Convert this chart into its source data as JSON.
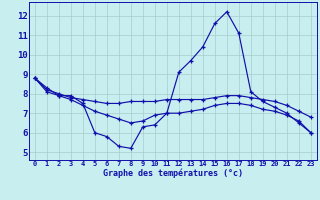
{
  "title": "Graphe des températures (°c)",
  "bg_color": "#c8eef0",
  "grid_color": "#a8cccc",
  "line_color": "#1010aa",
  "x_ticks": [
    0,
    1,
    2,
    3,
    4,
    5,
    6,
    7,
    8,
    9,
    10,
    11,
    12,
    13,
    14,
    15,
    16,
    17,
    18,
    19,
    20,
    21,
    22,
    23
  ],
  "y_ticks": [
    5,
    6,
    7,
    8,
    9,
    10,
    11,
    12
  ],
  "ylim": [
    4.6,
    12.7
  ],
  "xlim": [
    -0.5,
    23.5
  ],
  "series1_x": [
    0,
    1,
    2,
    3,
    4,
    5,
    6,
    7,
    8,
    9,
    10,
    11,
    12,
    13,
    14,
    15,
    16,
    17,
    18,
    19,
    20,
    21,
    22,
    23
  ],
  "series1_y": [
    8.8,
    8.3,
    7.9,
    7.9,
    7.5,
    6.0,
    5.8,
    5.3,
    5.2,
    6.3,
    6.4,
    7.0,
    9.1,
    9.7,
    10.4,
    11.6,
    12.2,
    11.1,
    8.1,
    7.6,
    7.3,
    7.0,
    6.5,
    6.0
  ],
  "series2_x": [
    0,
    1,
    2,
    3,
    4,
    5,
    6,
    7,
    8,
    9,
    10,
    11,
    12,
    13,
    14,
    15,
    16,
    17,
    18,
    19,
    20,
    21,
    22,
    23
  ],
  "series2_y": [
    8.8,
    8.2,
    8.0,
    7.8,
    7.7,
    7.6,
    7.5,
    7.5,
    7.6,
    7.6,
    7.6,
    7.7,
    7.7,
    7.7,
    7.7,
    7.8,
    7.9,
    7.9,
    7.8,
    7.7,
    7.6,
    7.4,
    7.1,
    6.8
  ],
  "series3_x": [
    0,
    1,
    2,
    3,
    4,
    5,
    6,
    7,
    8,
    9,
    10,
    11,
    12,
    13,
    14,
    15,
    16,
    17,
    18,
    19,
    20,
    21,
    22,
    23
  ],
  "series3_y": [
    8.8,
    8.1,
    7.9,
    7.7,
    7.4,
    7.1,
    6.9,
    6.7,
    6.5,
    6.6,
    6.9,
    7.0,
    7.0,
    7.1,
    7.2,
    7.4,
    7.5,
    7.5,
    7.4,
    7.2,
    7.1,
    6.9,
    6.6,
    6.0
  ],
  "xlabel_fontsize": 6.0,
  "ylabel_fontsize": 6.0,
  "tick_fontsize": 5.0,
  "linewidth": 0.85,
  "markersize": 3.0
}
